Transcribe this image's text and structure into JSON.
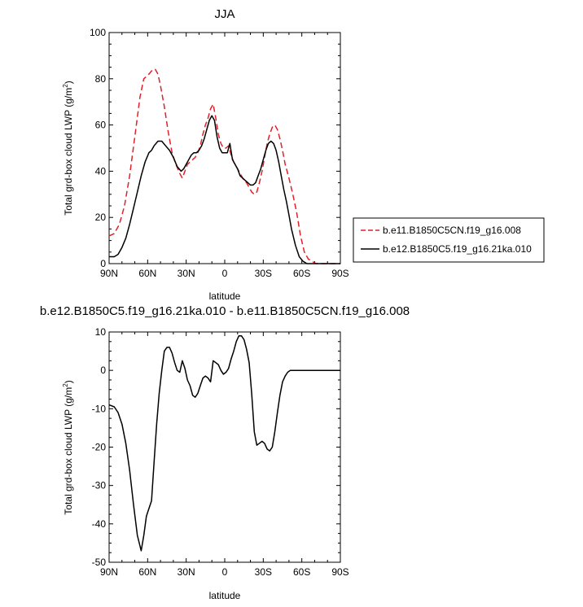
{
  "chart_data": [
    {
      "type": "line",
      "title": "JJA",
      "xlabel": "latitude",
      "ylabel": "Total grd-box cloud LWP (g/m",
      "ylabel_sup": "2",
      "ylabel_close": ")",
      "xlim": [
        90,
        -90
      ],
      "ylim": [
        0,
        100
      ],
      "x_ticks": [
        90,
        60,
        30,
        0,
        -30,
        -60,
        -90
      ],
      "x_tick_labels": [
        "90N",
        "60N",
        "30N",
        "0",
        "30S",
        "60S",
        "90S"
      ],
      "y_ticks": [
        0,
        20,
        40,
        60,
        80,
        100
      ],
      "y_tick_labels": [
        "0",
        "20",
        "40",
        "60",
        "80",
        "100"
      ],
      "legend_position": "right",
      "series": [
        {
          "name": "b.e11.B1850C5CN.f19_g16.008",
          "color": "#e0202a",
          "dash": "dashed",
          "x": [
            90,
            86,
            82,
            78,
            74,
            70,
            66,
            63,
            61,
            59,
            56,
            54,
            52,
            50,
            47,
            44,
            41,
            38,
            35,
            33,
            31,
            29,
            27,
            25,
            23,
            21,
            19,
            17,
            15,
            13,
            11,
            9,
            7,
            5,
            3,
            1,
            -1,
            -3,
            -5,
            -7,
            -9,
            -11,
            -13,
            -15,
            -17,
            -19,
            -21,
            -23,
            -25,
            -27,
            -29,
            -31,
            -33,
            -35,
            -37,
            -39,
            -41,
            -43,
            -45,
            -47,
            -50,
            -53,
            -56,
            -59,
            -62,
            -65,
            -68,
            -71,
            -74,
            -77,
            -80,
            -83,
            -86,
            -90
          ],
          "y": [
            12,
            13,
            17,
            25,
            38,
            55,
            72,
            80,
            81,
            82,
            84,
            84,
            82,
            77,
            68,
            57,
            48,
            43,
            39,
            37,
            40,
            43,
            44,
            45,
            46,
            48,
            51,
            56,
            60,
            63,
            67,
            69,
            63,
            56,
            52,
            50,
            50,
            51,
            47,
            44,
            42,
            40,
            38,
            36,
            35,
            33,
            31,
            30,
            31,
            35,
            40,
            46,
            52,
            56,
            59,
            60,
            58,
            54,
            49,
            43,
            37,
            30,
            22,
            12,
            5,
            2,
            1,
            0,
            0,
            0,
            0,
            0,
            0,
            0
          ]
        },
        {
          "name": "b.e12.B1850C5.f19_g16.21ka.010",
          "color": "#000000",
          "dash": "solid",
          "x": [
            90,
            86,
            83,
            80,
            77,
            74,
            71,
            68,
            65,
            62,
            59,
            57,
            55,
            52,
            49,
            46,
            43,
            40,
            37,
            34,
            32,
            30,
            28,
            26,
            24,
            22,
            20,
            18,
            16,
            14,
            12,
            10,
            8,
            6,
            4,
            2,
            0,
            -2,
            -4,
            -6,
            -8,
            -10,
            -12,
            -14,
            -16,
            -18,
            -20,
            -22,
            -24,
            -26,
            -28,
            -30,
            -32,
            -34,
            -36,
            -38,
            -40,
            -42,
            -44,
            -46,
            -48,
            -50,
            -52,
            -55,
            -58,
            -61,
            -64,
            -67,
            -70,
            -74,
            -78,
            -82,
            -86,
            -90
          ],
          "y": [
            3,
            3,
            4,
            7,
            11,
            17,
            24,
            31,
            38,
            44,
            48,
            49,
            51,
            53,
            53,
            51,
            49,
            46,
            42,
            40,
            41,
            43,
            45,
            47,
            48,
            48,
            49,
            51,
            54,
            58,
            62,
            64,
            62,
            55,
            50,
            48,
            48,
            48,
            52,
            45,
            43,
            41,
            38,
            37,
            36,
            35,
            34,
            34,
            35,
            38,
            41,
            45,
            49,
            52,
            53,
            52,
            49,
            44,
            38,
            32,
            27,
            21,
            15,
            8,
            3,
            1,
            0,
            0,
            0,
            0,
            0,
            0,
            0,
            0
          ]
        }
      ]
    },
    {
      "type": "line",
      "title": "b.e12.B1850C5.f19_g16.21ka.010 - b.e11.B1850C5CN.f19_g16.008",
      "xlabel": "latitude",
      "ylabel": "Total grd-box cloud LWP (g/m",
      "ylabel_sup": "2",
      "ylabel_close": ")",
      "xlim": [
        90,
        -90
      ],
      "ylim": [
        -50,
        10
      ],
      "x_ticks": [
        90,
        60,
        30,
        0,
        -30,
        -60,
        -90
      ],
      "x_tick_labels": [
        "90N",
        "60N",
        "30N",
        "0",
        "30S",
        "60S",
        "90S"
      ],
      "y_ticks": [
        -50,
        -40,
        -30,
        -20,
        -10,
        0,
        10
      ],
      "y_tick_labels": [
        "-50",
        "-40",
        "-30",
        "-20",
        "-10",
        "0",
        "10"
      ],
      "series": [
        {
          "color": "#000000",
          "dash": "solid",
          "x": [
            90,
            86,
            83,
            80,
            77,
            74,
            71,
            68,
            65,
            63,
            61,
            59,
            57,
            55,
            53,
            51,
            49,
            47,
            45,
            43,
            41,
            39,
            37,
            35,
            33,
            31,
            29,
            27,
            25,
            23,
            21,
            19,
            17,
            15,
            13,
            11,
            9,
            7,
            5,
            3,
            1,
            -1,
            -3,
            -5,
            -7,
            -9,
            -11,
            -13,
            -15,
            -17,
            -19,
            -21,
            -23,
            -25,
            -27,
            -29,
            -31,
            -33,
            -35,
            -37,
            -39,
            -41,
            -43,
            -45,
            -47,
            -49,
            -51,
            -53,
            -55,
            -57,
            -59,
            -61,
            -63,
            -65,
            -67,
            -70,
            -73,
            -76,
            -80,
            -85,
            -90
          ],
          "y": [
            -9,
            -9.5,
            -11,
            -14,
            -19,
            -26,
            -35,
            -43,
            -47,
            -43,
            -38,
            -36,
            -34,
            -24,
            -14,
            -6,
            0,
            5,
            6,
            6,
            4.5,
            2,
            0,
            -0.5,
            2.5,
            0.5,
            -2.5,
            -4,
            -6.5,
            -7,
            -6,
            -4,
            -2,
            -1.5,
            -2,
            -3,
            2.5,
            2,
            1.5,
            0,
            -1,
            -0.5,
            0.5,
            3,
            5,
            7.5,
            9,
            9,
            8,
            5.5,
            2,
            -6,
            -16,
            -19.5,
            -19,
            -18.5,
            -19,
            -20.5,
            -21,
            -20,
            -16,
            -11,
            -6.5,
            -3,
            -1.5,
            -0.5,
            0,
            0,
            0,
            0,
            0,
            0,
            0,
            0,
            0,
            0,
            0,
            0,
            0,
            0,
            0
          ]
        }
      ]
    }
  ]
}
